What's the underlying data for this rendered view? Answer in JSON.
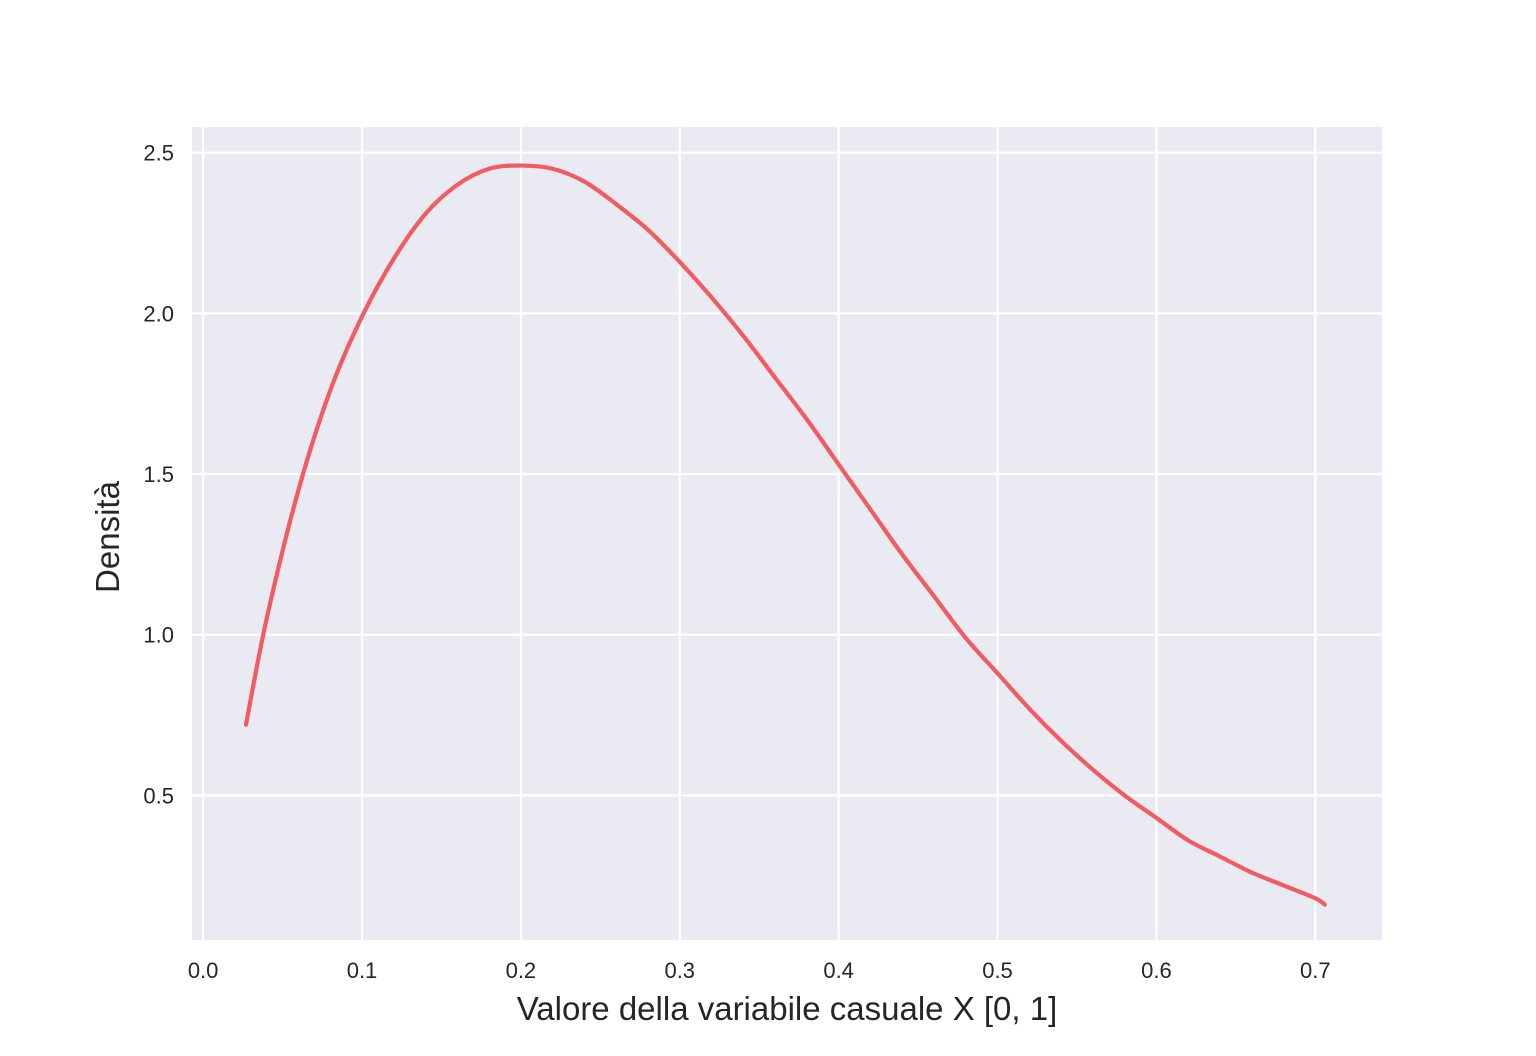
{
  "chart_data": {
    "type": "line",
    "title": "",
    "xlabel": "Valore della variabile casuale X [0, 1]",
    "ylabel": "Densità",
    "xlim": [
      -0.007,
      0.742
    ],
    "ylim": [
      0.05,
      2.58
    ],
    "xticks": [
      "0.0",
      "0.1",
      "0.2",
      "0.3",
      "0.4",
      "0.5",
      "0.6",
      "0.7"
    ],
    "yticks": [
      "0.5",
      "1.0",
      "1.5",
      "2.0",
      "2.5"
    ],
    "grid": true,
    "legend": "none",
    "colors": {
      "background": "#eaeaf2",
      "grid": "#ffffff",
      "line": "#f15b61",
      "text": "#262626"
    },
    "series": [
      {
        "x": [
          0.027,
          0.04,
          0.06,
          0.08,
          0.1,
          0.12,
          0.14,
          0.16,
          0.18,
          0.2,
          0.22,
          0.24,
          0.26,
          0.28,
          0.3,
          0.32,
          0.34,
          0.36,
          0.38,
          0.4,
          0.42,
          0.44,
          0.46,
          0.48,
          0.5,
          0.52,
          0.54,
          0.56,
          0.58,
          0.6,
          0.62,
          0.64,
          0.66,
          0.68,
          0.7,
          0.706
        ],
        "y": [
          0.72,
          1.05,
          1.45,
          1.76,
          1.99,
          2.17,
          2.31,
          2.4,
          2.45,
          2.46,
          2.45,
          2.41,
          2.34,
          2.26,
          2.16,
          2.05,
          1.93,
          1.8,
          1.67,
          1.53,
          1.39,
          1.25,
          1.12,
          0.99,
          0.88,
          0.77,
          0.67,
          0.58,
          0.5,
          0.43,
          0.36,
          0.31,
          0.26,
          0.22,
          0.18,
          0.16
        ]
      }
    ]
  }
}
